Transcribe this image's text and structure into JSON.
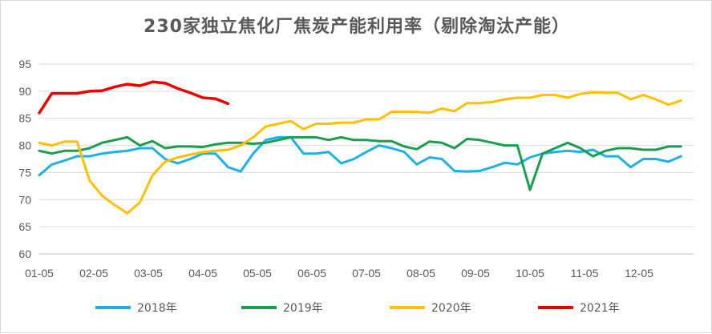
{
  "chart_data": {
    "type": "line",
    "title": "230家独立焦化厂焦炭产能利用率（剔除淘汰产能）",
    "xlabel": "",
    "ylabel": "",
    "ylim": [
      60,
      95
    ],
    "yticks": [
      60,
      65,
      70,
      75,
      80,
      85,
      90,
      95
    ],
    "x_tick_labels": [
      "01-05",
      "02-05",
      "03-05",
      "04-05",
      "05-05",
      "06-05",
      "07-05",
      "08-05",
      "09-05",
      "10-05",
      "11-05",
      "12-05"
    ],
    "x_unit": "week_index_1_to_52",
    "grid": true,
    "legend_position": "bottom",
    "series": [
      {
        "name": "2018年",
        "color": "#1fb0e6",
        "values": [
          74.5,
          76.5,
          77.2,
          78.0,
          78.0,
          78.5,
          78.8,
          79.0,
          79.5,
          79.5,
          77.5,
          76.7,
          77.5,
          78.5,
          78.5,
          76.0,
          75.2,
          78.5,
          81.0,
          81.5,
          81.5,
          78.5,
          78.5,
          78.8,
          76.7,
          77.5,
          78.8,
          80.0,
          79.5,
          78.8,
          76.5,
          77.8,
          77.5,
          75.3,
          75.2,
          75.3,
          76.0,
          76.8,
          76.5,
          77.8,
          78.5,
          78.8,
          79.0,
          78.8,
          79.2,
          78.0,
          78.0,
          76.0,
          77.5,
          77.5,
          77.0,
          78.0
        ]
      },
      {
        "name": "2019年",
        "color": "#1a9d4c",
        "values": [
          79.0,
          78.5,
          79.0,
          79.0,
          79.5,
          80.5,
          81.0,
          81.5,
          80.0,
          80.8,
          79.5,
          79.8,
          79.8,
          79.7,
          80.2,
          80.5,
          80.5,
          80.3,
          80.5,
          81.0,
          81.5,
          81.5,
          81.5,
          81.0,
          81.5,
          81.0,
          81.0,
          80.8,
          80.8,
          79.8,
          79.3,
          80.7,
          80.5,
          79.5,
          81.2,
          81.0,
          80.5,
          80.0,
          80.0,
          71.8,
          78.5,
          79.5,
          80.5,
          79.5,
          78.0,
          79.0,
          79.5,
          79.5,
          79.2,
          79.2,
          79.8,
          79.8
        ]
      },
      {
        "name": "2020年",
        "color": "#ffc000",
        "values": [
          80.5,
          80.0,
          80.7,
          80.7,
          73.5,
          70.7,
          69.0,
          67.5,
          69.5,
          74.5,
          77.0,
          77.8,
          78.3,
          78.8,
          79.0,
          79.2,
          80.0,
          81.5,
          83.5,
          84.0,
          84.5,
          83.0,
          84.0,
          84.0,
          84.2,
          84.2,
          84.8,
          84.8,
          86.2,
          86.2,
          86.2,
          86.0,
          86.8,
          86.3,
          87.8,
          87.8,
          88.0,
          88.5,
          88.8,
          88.8,
          89.3,
          89.3,
          88.8,
          89.5,
          89.8,
          89.7,
          89.7,
          88.5,
          89.3,
          88.5,
          87.5,
          88.3
        ]
      },
      {
        "name": "2021年",
        "color": "#ee0000",
        "values": [
          86.0,
          89.6,
          89.6,
          89.6,
          90.0,
          90.1,
          90.8,
          91.3,
          91.0,
          91.7,
          91.5,
          90.5,
          89.7,
          88.8,
          88.6,
          87.7
        ]
      }
    ]
  }
}
